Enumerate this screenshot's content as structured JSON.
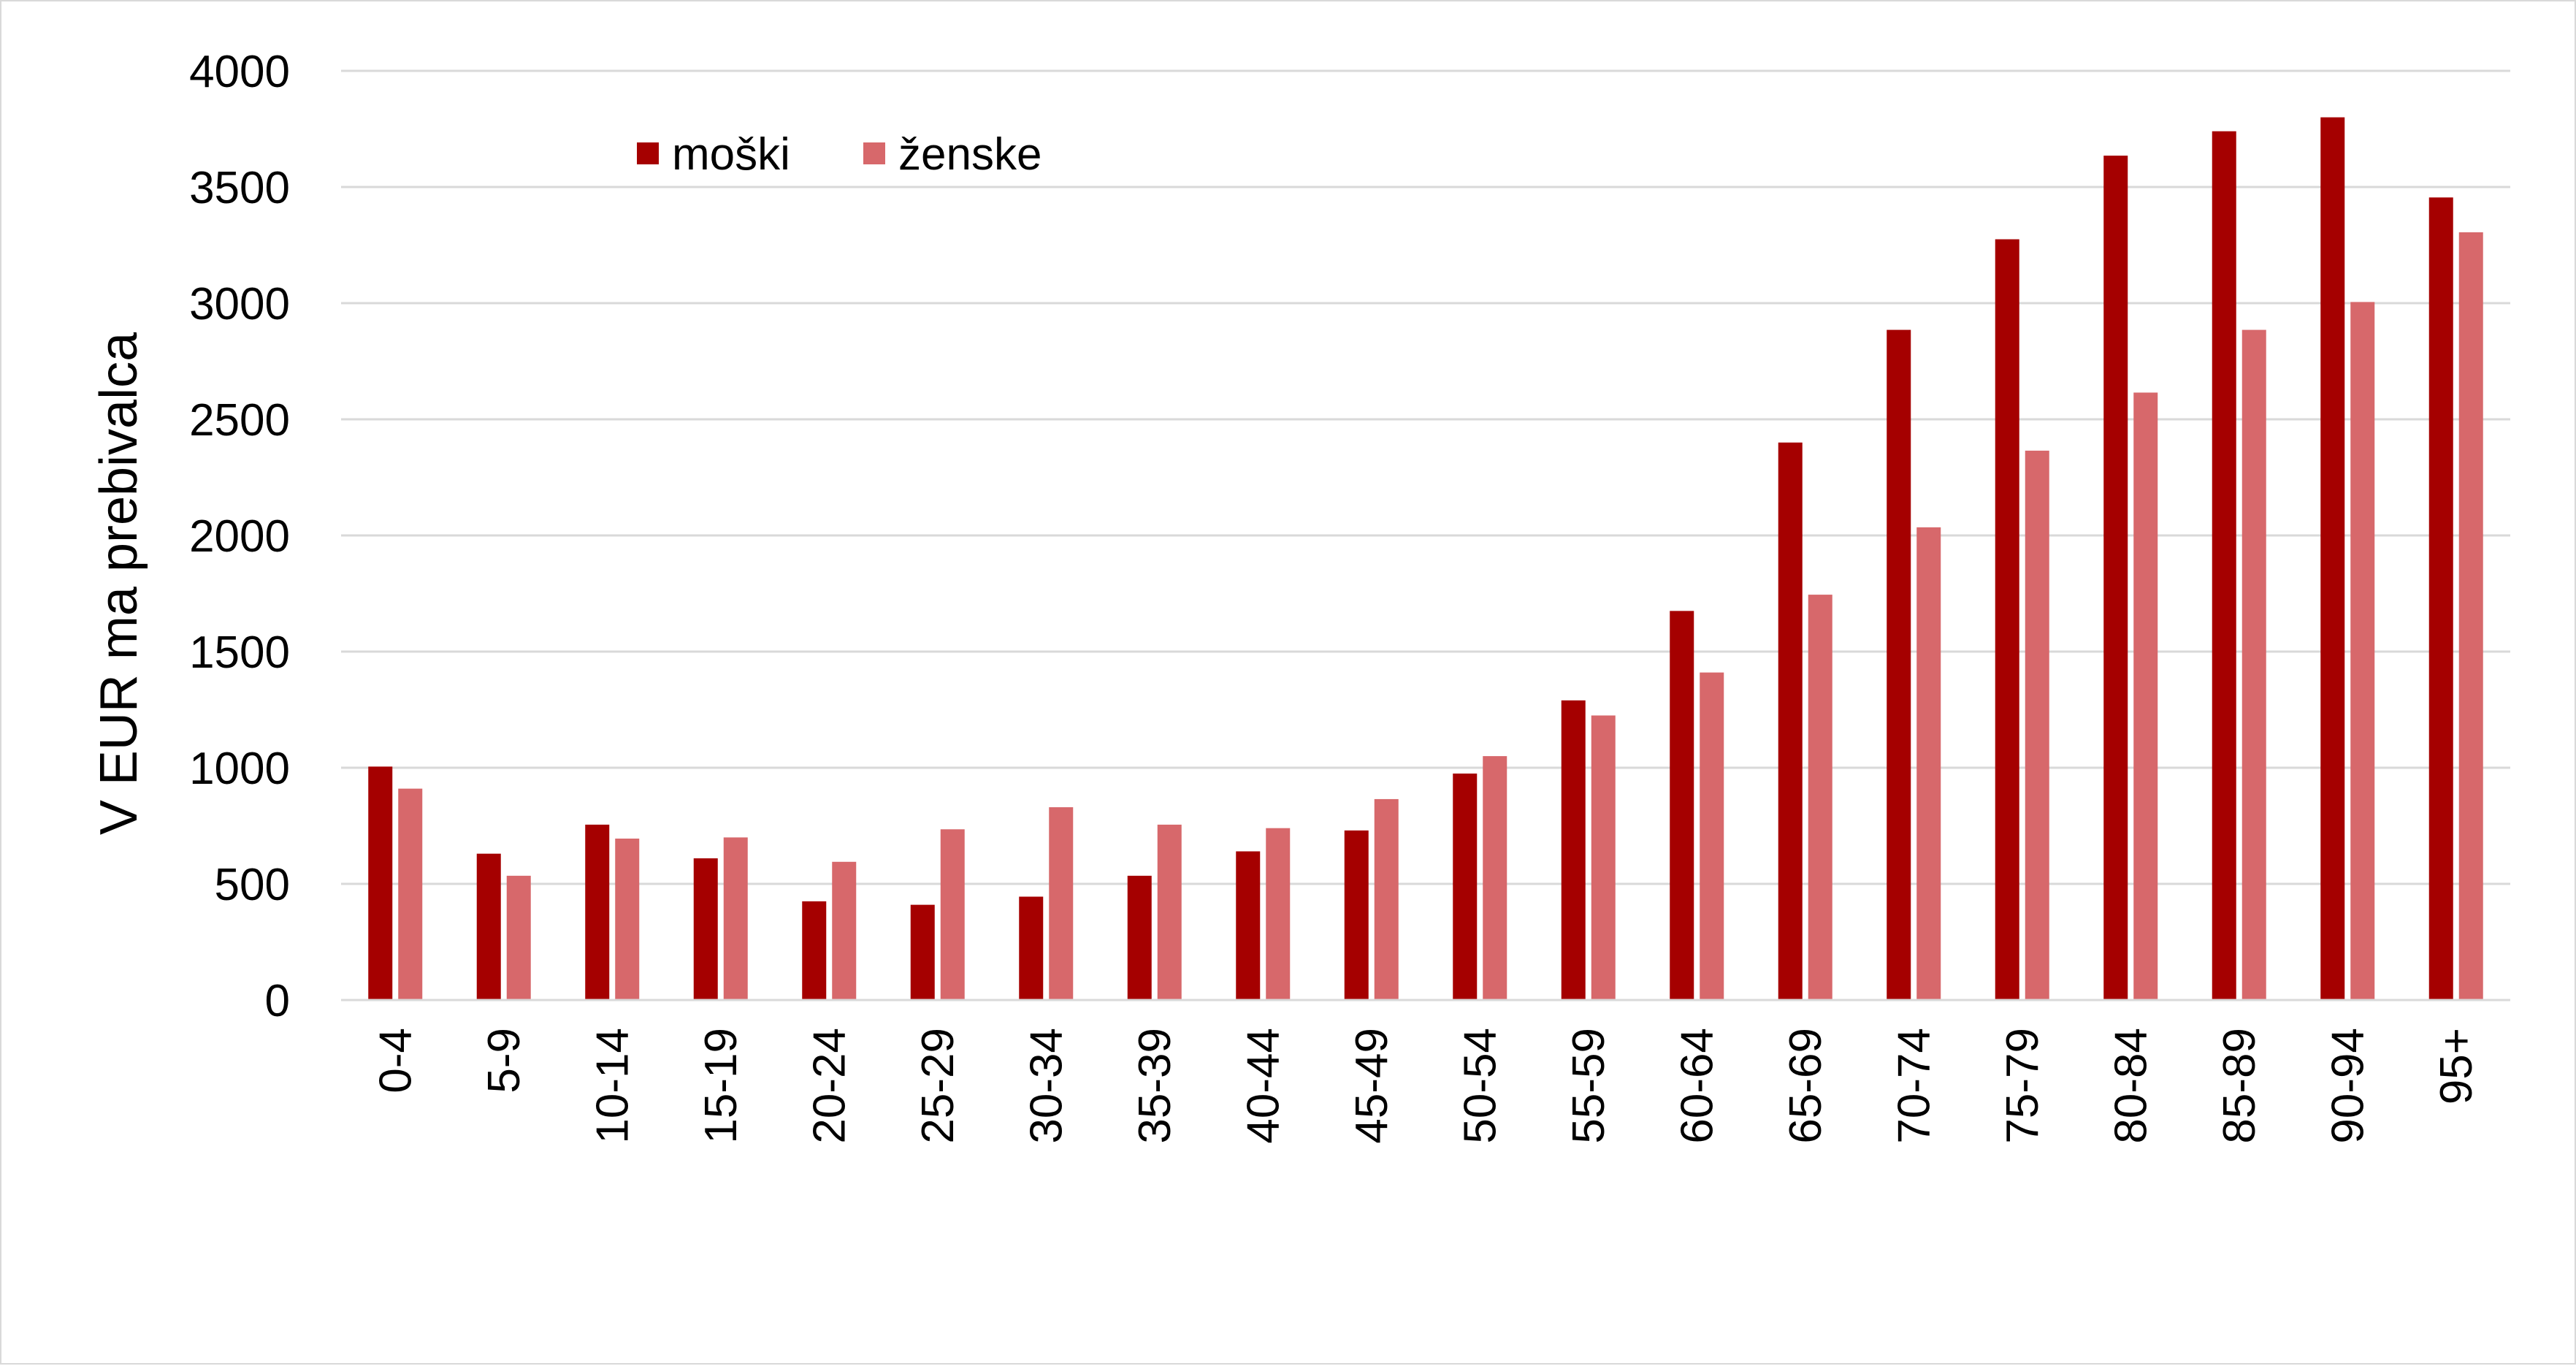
{
  "chart_data": {
    "type": "bar",
    "title": "",
    "xlabel": "",
    "ylabel": "V EUR ma prebivalca",
    "ylim": [
      0,
      4000
    ],
    "yticks": [
      0,
      500,
      1000,
      1500,
      2000,
      2500,
      3000,
      3500,
      4000
    ],
    "grid": true,
    "legend_position": "top-left",
    "categories": [
      "0-4",
      "5-9",
      "10-14",
      "15-19",
      "20-24",
      "25-29",
      "30-34",
      "35-39",
      "40-44",
      "45-49",
      "50-54",
      "55-59",
      "60-64",
      "65-69",
      "70-74",
      "75-79",
      "80-84",
      "85-89",
      "90-94",
      "95+"
    ],
    "series": [
      {
        "name": "moški",
        "color": "#a50000",
        "values": [
          1005,
          630,
          755,
          610,
          425,
          410,
          445,
          535,
          640,
          730,
          975,
          1290,
          1675,
          2400,
          2885,
          3275,
          3635,
          3740,
          3800,
          3455
        ]
      },
      {
        "name": "ženske",
        "color": "#d7686b",
        "values": [
          910,
          535,
          695,
          700,
          595,
          735,
          830,
          755,
          740,
          865,
          1050,
          1225,
          1410,
          1745,
          2035,
          2365,
          2615,
          2885,
          3005,
          3305
        ]
      }
    ],
    "gridline_color": "#d9d9d9"
  }
}
